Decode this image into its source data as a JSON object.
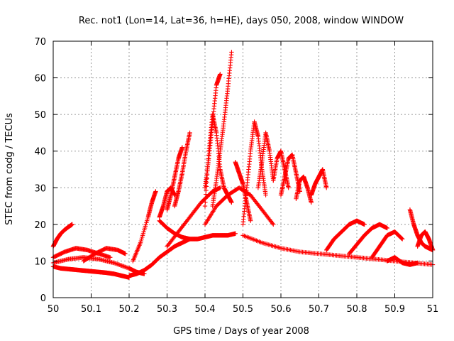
{
  "chart_data": {
    "type": "scatter",
    "title": "Rec. not1 (Lon=14, Lat=36, h=HE), days 050, 2008, window WINDOW",
    "xlabel": "GPS time / Days of year 2008",
    "ylabel": "STEC from codg / TECUs",
    "xlim": [
      50,
      51
    ],
    "ylim": [
      0,
      70
    ],
    "xticks": [
      "50",
      "50.1",
      "50.2",
      "50.3",
      "50.4",
      "50.5",
      "50.6",
      "50.7",
      "50.8",
      "50.9",
      "51"
    ],
    "yticks": [
      "0",
      "10",
      "20",
      "30",
      "40",
      "50",
      "60",
      "70"
    ],
    "grid": true,
    "legend": "none",
    "marker": "plus",
    "color": "#ff0000",
    "series": [
      {
        "x": [
          50.0,
          50.02,
          50.04,
          50.06,
          50.08,
          50.1,
          50.12,
          50.14,
          50.16,
          50.18,
          50.2
        ],
        "y": [
          8.5,
          8.0,
          7.8,
          7.6,
          7.4,
          7.2,
          7.0,
          6.8,
          6.5,
          6.0,
          5.5
        ]
      },
      {
        "x": [
          50.0,
          50.01,
          50.02,
          50.03,
          50.04,
          50.05
        ],
        "y": [
          14.0,
          16.0,
          17.5,
          18.5,
          19.3,
          20.0
        ]
      },
      {
        "x": [
          50.0,
          50.03,
          50.06,
          50.09,
          50.12,
          50.15
        ],
        "y": [
          11.0,
          12.5,
          13.5,
          13.0,
          12.0,
          11.0
        ]
      },
      {
        "x": [
          50.0,
          50.04,
          50.08,
          50.12,
          50.16,
          50.2,
          50.22,
          50.24
        ],
        "y": [
          9.5,
          10.5,
          11.0,
          10.5,
          9.5,
          8.0,
          7.0,
          6.5
        ]
      },
      {
        "x": [
          50.08,
          50.11,
          50.14,
          50.17,
          50.19
        ],
        "y": [
          10.0,
          12.0,
          13.5,
          13.0,
          12.0
        ]
      },
      {
        "x": [
          50.2,
          50.22,
          50.24,
          50.26,
          50.28,
          50.3,
          50.32,
          50.34,
          50.36
        ],
        "y": [
          6.0,
          6.5,
          7.5,
          9.0,
          11.0,
          12.5,
          14.0,
          15.0,
          16.0
        ]
      },
      {
        "x": [
          50.21,
          50.23,
          50.25,
          50.26,
          50.27
        ],
        "y": [
          10.0,
          15.0,
          22.0,
          26.0,
          29.0
        ]
      },
      {
        "x": [
          50.28,
          50.3,
          50.32,
          50.34,
          50.36,
          50.38,
          50.4,
          50.42,
          50.44,
          50.46,
          50.48
        ],
        "y": [
          21.0,
          19.0,
          17.5,
          16.5,
          16.0,
          16.0,
          16.5,
          17.0,
          17.0,
          17.0,
          17.5
        ]
      },
      {
        "x": [
          50.28,
          50.29,
          50.3,
          50.31,
          50.32
        ],
        "y": [
          22.0,
          25.0,
          29.0,
          30.0,
          28.0
        ]
      },
      {
        "x": [
          50.3,
          50.31,
          50.32,
          50.33,
          50.34
        ],
        "y": [
          24.0,
          28.0,
          33.0,
          38.0,
          41.0
        ]
      },
      {
        "x": [
          50.32,
          50.33,
          50.34,
          50.35,
          50.36
        ],
        "y": [
          25.0,
          29.0,
          34.0,
          40.0,
          45.0
        ]
      },
      {
        "x": [
          50.3,
          50.33,
          50.36,
          50.39,
          50.42,
          50.44
        ],
        "y": [
          14.0,
          18.0,
          22.0,
          26.0,
          29.0,
          30.0
        ]
      },
      {
        "x": [
          50.4,
          50.41,
          50.42,
          50.43,
          50.44,
          50.45,
          50.46,
          50.47
        ],
        "y": [
          25.0,
          40.0,
          50.0,
          45.0,
          35.0,
          30.0,
          28.0,
          26.0
        ]
      },
      {
        "x": [
          50.4,
          50.41,
          50.42,
          50.43,
          50.44
        ],
        "y": [
          30.0,
          38.0,
          48.0,
          58.0,
          61.0
        ]
      },
      {
        "x": [
          50.42,
          50.43,
          50.44,
          50.45,
          50.46,
          50.47
        ],
        "y": [
          25.0,
          32.0,
          40.0,
          48.0,
          57.0,
          67.0
        ]
      },
      {
        "x": [
          50.4,
          50.43,
          50.46,
          50.49,
          50.52,
          50.55,
          50.58
        ],
        "y": [
          20.0,
          25.0,
          28.0,
          30.0,
          28.0,
          24.0,
          20.0
        ]
      },
      {
        "x": [
          50.48,
          50.49,
          50.5,
          50.51,
          50.52
        ],
        "y": [
          37.0,
          34.0,
          31.0,
          26.0,
          21.0
        ]
      },
      {
        "x": [
          50.5,
          50.51,
          50.52,
          50.53,
          50.54,
          50.55,
          50.56
        ],
        "y": [
          20.0,
          30.0,
          40.0,
          48.0,
          44.0,
          35.0,
          28.0
        ]
      },
      {
        "x": [
          50.54,
          50.55,
          50.56,
          50.57,
          50.58
        ],
        "y": [
          30.0,
          37.0,
          45.0,
          40.0,
          32.0
        ]
      },
      {
        "x": [
          50.58,
          50.59,
          50.6,
          50.61,
          50.62
        ],
        "y": [
          32.0,
          38.0,
          40.0,
          35.0,
          30.0
        ]
      },
      {
        "x": [
          50.6,
          50.61,
          50.62,
          50.63,
          50.64,
          50.65
        ],
        "y": [
          28.0,
          33.0,
          38.0,
          39.0,
          34.0,
          29.0
        ]
      },
      {
        "x": [
          50.64,
          50.65,
          50.66,
          50.67,
          50.68
        ],
        "y": [
          27.0,
          32.0,
          33.0,
          30.0,
          26.0
        ]
      },
      {
        "x": [
          50.68,
          50.69,
          50.7,
          50.71,
          50.72
        ],
        "y": [
          28.0,
          31.0,
          33.0,
          35.0,
          30.0
        ]
      },
      {
        "x": [
          50.5,
          50.55,
          50.6,
          50.65,
          50.7,
          50.75,
          50.8,
          50.85,
          50.9,
          50.95,
          51.0
        ],
        "y": [
          17.0,
          15.0,
          13.5,
          12.5,
          12.0,
          11.5,
          11.0,
          10.5,
          10.0,
          9.5,
          9.0
        ]
      },
      {
        "x": [
          50.72,
          50.74,
          50.76,
          50.78,
          50.8,
          50.82
        ],
        "y": [
          13.0,
          16.0,
          18.0,
          20.0,
          21.0,
          20.0
        ]
      },
      {
        "x": [
          50.78,
          50.8,
          50.82,
          50.84,
          50.86,
          50.88
        ],
        "y": [
          12.0,
          14.5,
          17.0,
          19.0,
          20.0,
          19.0
        ]
      },
      {
        "x": [
          50.84,
          50.86,
          50.88,
          50.9,
          50.92
        ],
        "y": [
          11.0,
          14.0,
          17.0,
          18.0,
          16.0
        ]
      },
      {
        "x": [
          50.88,
          50.9,
          50.92,
          50.94,
          50.96
        ],
        "y": [
          10.0,
          11.0,
          9.5,
          9.0,
          9.5
        ]
      },
      {
        "x": [
          50.94,
          50.95,
          50.96,
          50.97,
          50.98,
          50.99,
          51.0
        ],
        "y": [
          24.0,
          20.0,
          17.0,
          15.0,
          14.0,
          13.5,
          13.0
        ]
      },
      {
        "x": [
          50.96,
          50.97,
          50.98,
          50.99,
          51.0
        ],
        "y": [
          14.0,
          17.0,
          18.0,
          16.0,
          13.0
        ]
      }
    ]
  }
}
